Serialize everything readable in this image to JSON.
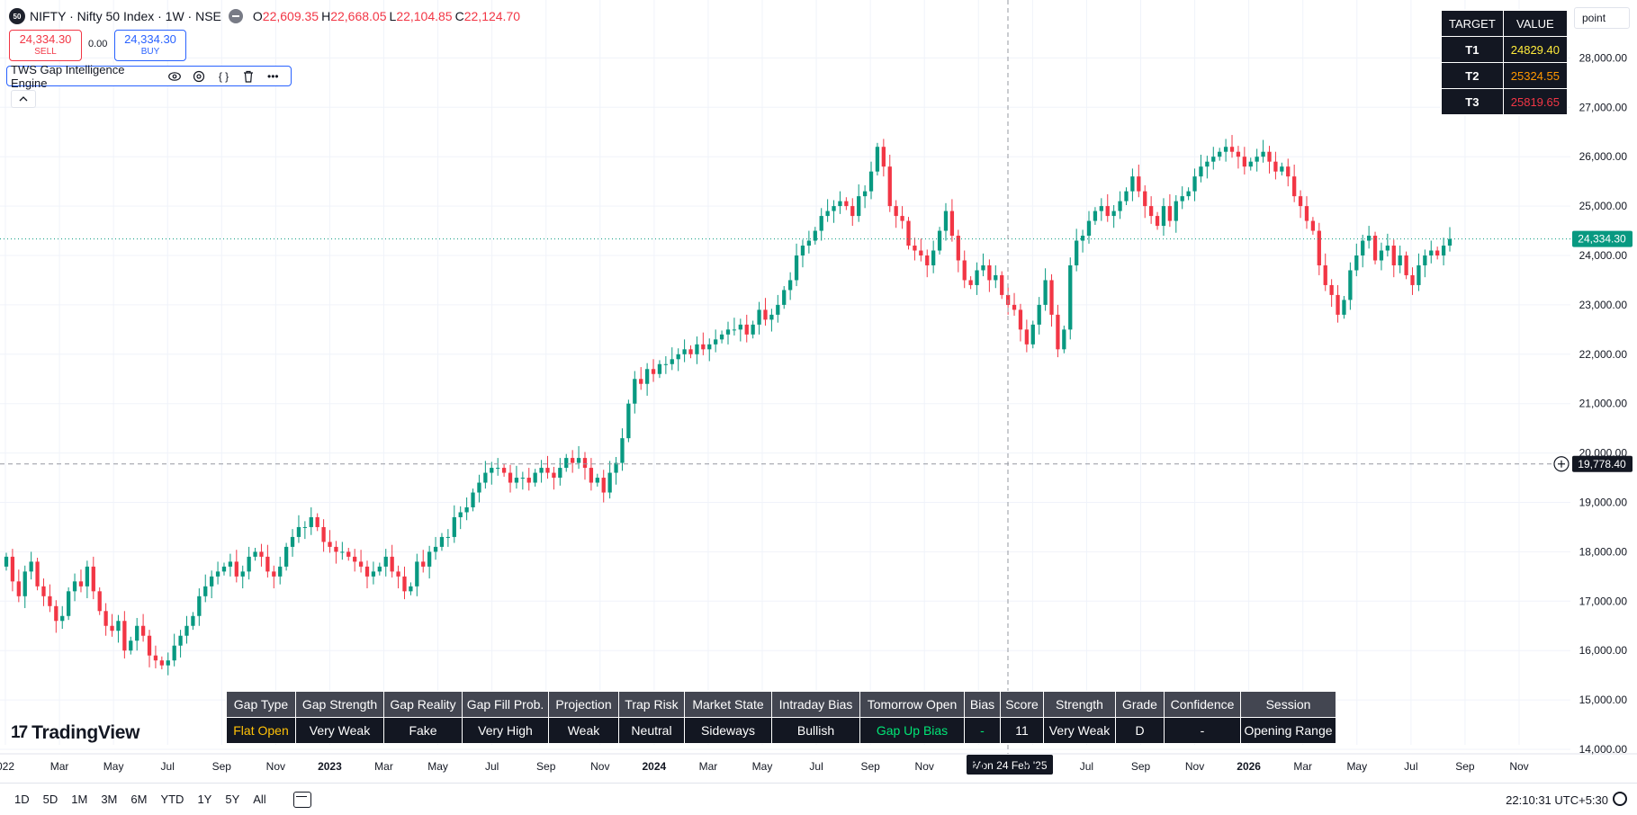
{
  "header": {
    "symbol_badge": "50",
    "title": "NIFTY · Nifty 50 Index · 1W · NSE",
    "ohlc": [
      {
        "label": "O",
        "value": "22,609.35"
      },
      {
        "label": "H",
        "value": "22,668.05"
      },
      {
        "label": "L",
        "value": "22,104.85"
      },
      {
        "label": "C",
        "value": "22,124.70"
      }
    ],
    "sell_price": "24,334.30",
    "sell_label": "SELL",
    "spread": "0.00",
    "buy_price": "24,334.30",
    "buy_label": "BUY",
    "indicator_name": "TWS Gap Intelligence Engine",
    "indicator_icons": [
      "eye-icon",
      "settings-icon",
      "source-code-icon",
      "trash-icon",
      "more-icon"
    ],
    "collapse_icon": "chevron-up-icon"
  },
  "target_table": {
    "headers": [
      "TARGET",
      "VALUE"
    ],
    "rows": [
      {
        "target": "T1",
        "value": "24829.40",
        "color": "#ffeb3b"
      },
      {
        "target": "T2",
        "value": "25324.55",
        "color": "#ff9800"
      },
      {
        "target": "T3",
        "value": "25819.65",
        "color": "#f23645"
      }
    ]
  },
  "unit_label": "point",
  "gap_table": {
    "headers": [
      "Gap Type",
      "Gap Strength",
      "Gap Reality",
      "Gap Fill Prob.",
      "Projection",
      "Trap Risk",
      "Market State",
      "Intraday Bias",
      "Tomorrow Open",
      "Bias",
      "Score",
      "Strength",
      "Grade",
      "Confidence",
      "Session"
    ],
    "values": [
      {
        "text": "Flat Open",
        "color": "#ffc107"
      },
      {
        "text": "Very Weak",
        "color": "#ffffff"
      },
      {
        "text": "Fake",
        "color": "#ffffff"
      },
      {
        "text": "Very High",
        "color": "#ffffff"
      },
      {
        "text": "Weak",
        "color": "#ffffff"
      },
      {
        "text": "Neutral",
        "color": "#ffffff"
      },
      {
        "text": "Sideways",
        "color": "#ffffff"
      },
      {
        "text": "Bullish",
        "color": "#ffffff"
      },
      {
        "text": "Gap Up Bias",
        "color": "#00e676"
      },
      {
        "text": "-",
        "color": "#00e676"
      },
      {
        "text": "11",
        "color": "#ffffff"
      },
      {
        "text": "Very Weak",
        "color": "#ffffff"
      },
      {
        "text": "D",
        "color": "#ffffff"
      },
      {
        "text": "-",
        "color": "#ffffff"
      },
      {
        "text": "Opening Range",
        "color": "#ffffff"
      }
    ]
  },
  "branding": {
    "logo_mark": "17",
    "logo_text": "TradingView"
  },
  "bottom_toolbar": {
    "timeframes": [
      "1D",
      "5D",
      "1M",
      "3M",
      "6M",
      "YTD",
      "1Y",
      "5Y",
      "All"
    ],
    "date_range_icon": "calendar-range-icon",
    "clock": "22:10:31 UTC+5:30",
    "settings_icon": "gear-icon"
  },
  "chart_data": {
    "type": "candlestick",
    "interval": "1W",
    "ylim": [
      14000,
      28000
    ],
    "y_tick_labels": [
      "14,000.00",
      "15,000.00",
      "16,000.00",
      "17,000.00",
      "18,000.00",
      "19,000.00",
      "20,000.00",
      "21,000.00",
      "22,000.00",
      "23,000.00",
      "24,000.00",
      "25,000.00",
      "26,000.00",
      "27,000.00",
      "28,000.00"
    ],
    "x_tick_labels": [
      {
        "label": "022",
        "bold": false
      },
      {
        "label": "Mar",
        "bold": false
      },
      {
        "label": "May",
        "bold": false
      },
      {
        "label": "Jul",
        "bold": false
      },
      {
        "label": "Sep",
        "bold": false
      },
      {
        "label": "Nov",
        "bold": false
      },
      {
        "label": "2023",
        "bold": true
      },
      {
        "label": "Mar",
        "bold": false
      },
      {
        "label": "May",
        "bold": false
      },
      {
        "label": "Jul",
        "bold": false
      },
      {
        "label": "Sep",
        "bold": false
      },
      {
        "label": "Nov",
        "bold": false
      },
      {
        "label": "2024",
        "bold": true
      },
      {
        "label": "Mar",
        "bold": false
      },
      {
        "label": "May",
        "bold": false
      },
      {
        "label": "Jul",
        "bold": false
      },
      {
        "label": "Sep",
        "bold": false
      },
      {
        "label": "Nov",
        "bold": false
      },
      {
        "label": "20",
        "bold": true
      },
      {
        "label": "May",
        "bold": false
      },
      {
        "label": "Jul",
        "bold": false
      },
      {
        "label": "Sep",
        "bold": false
      },
      {
        "label": "Nov",
        "bold": false
      },
      {
        "label": "2026",
        "bold": true
      },
      {
        "label": "Mar",
        "bold": false
      },
      {
        "label": "May",
        "bold": false
      },
      {
        "label": "Jul",
        "bold": false
      },
      {
        "label": "Sep",
        "bold": false
      },
      {
        "label": "Nov",
        "bold": false
      }
    ],
    "last_price": 24334.3,
    "last_price_label": "24,334.30",
    "crosshair_price": 19778.4,
    "crosshair_price_label": "19,778.40",
    "crosshair_date_label": "Mon 24 Feb '25",
    "up_color": "#089981",
    "down_color": "#f23645",
    "closes": [
      17900,
      17400,
      17100,
      17600,
      17800,
      17300,
      17100,
      16900,
      16600,
      16700,
      17200,
      17400,
      17300,
      17700,
      17200,
      16800,
      16500,
      16400,
      16600,
      16000,
      16200,
      16500,
      16300,
      15900,
      15800,
      15700,
      15800,
      16100,
      16300,
      16500,
      16700,
      17100,
      17300,
      17500,
      17600,
      17700,
      17800,
      17500,
      17600,
      17900,
      18000,
      17900,
      17600,
      17500,
      17700,
      18100,
      18300,
      18500,
      18500,
      18700,
      18500,
      18200,
      18100,
      18000,
      18000,
      17900,
      17800,
      17700,
      17500,
      17600,
      17700,
      17900,
      17600,
      17500,
      17200,
      17300,
      17800,
      17700,
      18000,
      18100,
      18300,
      18300,
      18700,
      18800,
      18900,
      19200,
      19400,
      19600,
      19700,
      19700,
      19600,
      19400,
      19500,
      19500,
      19400,
      19600,
      19700,
      19600,
      19500,
      19700,
      19900,
      19800,
      19900,
      19700,
      19400,
      19500,
      19200,
      19600,
      19800,
      20300,
      21000,
      21500,
      21400,
      21700,
      21600,
      21800,
      21800,
      21900,
      22000,
      22100,
      22000,
      22200,
      22100,
      22200,
      22300,
      22400,
      22500,
      22500,
      22600,
      22400,
      22600,
      22900,
      22700,
      22800,
      23000,
      23300,
      23500,
      24000,
      24200,
      24300,
      24500,
      24800,
      24900,
      25000,
      25100,
      25000,
      24800,
      25200,
      25300,
      25700,
      26200,
      25800,
      25000,
      24800,
      24700,
      24200,
      24100,
      24000,
      23800,
      24100,
      24500,
      24900,
      24400,
      23900,
      23500,
      23400,
      23700,
      23800,
      23500,
      23600,
      23200,
      23000,
      22900,
      22500,
      22200,
      22600,
      23000,
      23500,
      22800,
      22100,
      22500,
      23800,
      24300,
      24400,
      24700,
      24900,
      25000,
      24800,
      24900,
      25100,
      25300,
      25600,
      25300,
      25000,
      24800,
      24600,
      25000,
      24700,
      25100,
      25200,
      25300,
      25600,
      25800,
      25900,
      26000,
      26100,
      26200,
      26100,
      26000,
      25800,
      25900,
      26000,
      26100,
      25900,
      25700,
      25800,
      25600,
      25200,
      25000,
      24700,
      24500,
      23800,
      23400,
      23200,
      22800,
      23100,
      23700,
      24000,
      24300,
      24400,
      23900,
      24100,
      24200,
      23800,
      24000,
      23600,
      23400,
      23800,
      24000,
      24100,
      24000,
      24200,
      24334.3
    ]
  }
}
